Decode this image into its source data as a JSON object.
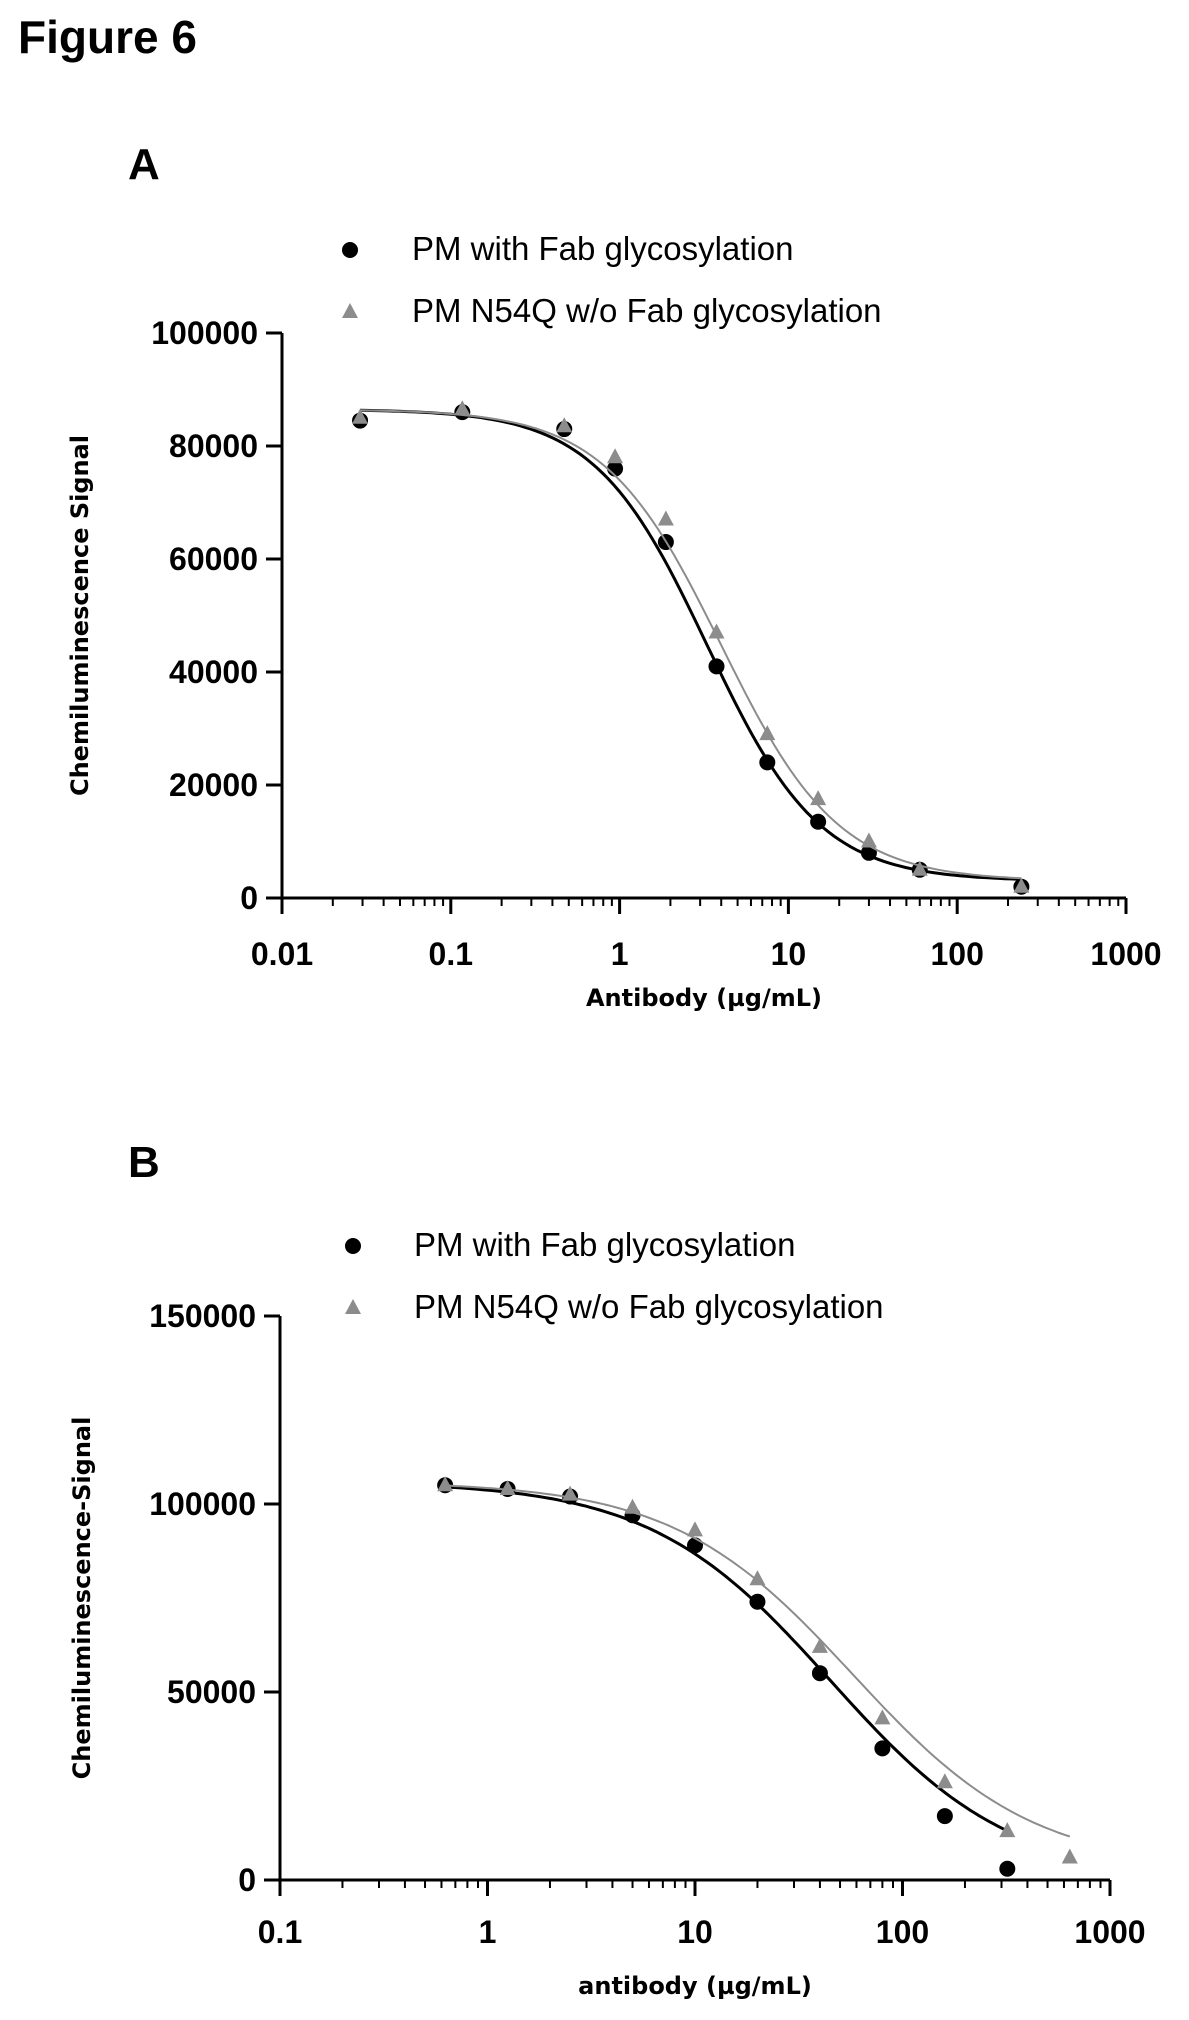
{
  "figure_title": "Figure 6",
  "panels": [
    {
      "letter": "A"
    },
    {
      "letter": "B"
    }
  ],
  "chart_data": [
    {
      "type": "scatter",
      "panel": "A",
      "x_scale": "log",
      "xlim": [
        0.01,
        1000
      ],
      "ylim": [
        0,
        100000
      ],
      "xlabel": "Antibody (µg/mL)",
      "ylabel": "Chemiluminescence Signal",
      "x_ticks": [
        "0.01",
        "0.1",
        "1",
        "10",
        "100",
        "1000"
      ],
      "y_ticks": [
        "0",
        "20000",
        "40000",
        "60000",
        "80000",
        "100000"
      ],
      "legend_position": "top",
      "series": [
        {
          "name": "PM with Fab glycosylation",
          "marker": "circle",
          "color": "#000000",
          "x": [
            0.029,
            0.117,
            0.47,
            0.94,
            1.88,
            3.75,
            7.5,
            15,
            30,
            60,
            240
          ],
          "y": [
            84500,
            86000,
            83000,
            76000,
            63000,
            41000,
            24000,
            13500,
            8000,
            5000,
            2000
          ],
          "fit": {
            "top": 86500,
            "bottom": 3000,
            "ec50": 3.3,
            "hill": 1.3
          }
        },
        {
          "name": "PM N54Q w/o Fab glycosylation",
          "marker": "triangle",
          "color": "#8c8c8c",
          "x": [
            0.029,
            0.117,
            0.47,
            0.94,
            1.88,
            3.75,
            7.5,
            15,
            30,
            60,
            240
          ],
          "y": [
            85000,
            86500,
            83500,
            78000,
            67000,
            47000,
            29000,
            17500,
            10000,
            5000,
            2000
          ],
          "fit": {
            "top": 86500,
            "bottom": 3000,
            "ec50": 4.0,
            "hill": 1.25
          }
        }
      ]
    },
    {
      "type": "scatter",
      "panel": "B",
      "x_scale": "log",
      "xlim": [
        0.1,
        1000
      ],
      "ylim": [
        0,
        150000
      ],
      "xlabel": "antibody (µg/mL)",
      "ylabel": "Chemiluminescence-Signal",
      "x_ticks": [
        "0.1",
        "1",
        "10",
        "100",
        "1000"
      ],
      "y_ticks": [
        "0",
        "50000",
        "100000",
        "150000"
      ],
      "legend_position": "top",
      "series": [
        {
          "name": "PM with Fab glycosylation",
          "marker": "circle",
          "color": "#000000",
          "x": [
            0.625,
            1.25,
            2.5,
            5,
            10,
            20,
            40,
            80,
            160,
            320
          ],
          "y": [
            105000,
            104000,
            102000,
            97000,
            89000,
            74000,
            55000,
            35000,
            17000,
            3000
          ],
          "fit": {
            "top": 106000,
            "bottom": 0,
            "ec50": 45,
            "hill": 1.0
          }
        },
        {
          "name": "PM N54Q w/o Fab glycosylation",
          "marker": "triangle",
          "color": "#8c8c8c",
          "x": [
            0.625,
            1.25,
            2.5,
            5,
            10,
            20,
            40,
            80,
            160,
            320,
            640
          ],
          "y": [
            105000,
            104000,
            102500,
            99000,
            93000,
            80000,
            62000,
            43000,
            26000,
            13000,
            6000
          ],
          "fit": {
            "top": 106000,
            "bottom": 3000,
            "ec50": 58,
            "hill": 1.0
          }
        }
      ]
    }
  ]
}
